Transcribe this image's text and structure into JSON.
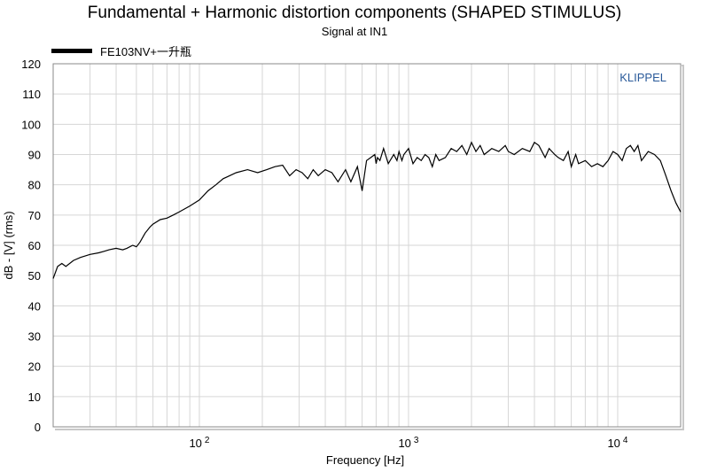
{
  "chart_data": {
    "type": "line",
    "title": "Fundamental + Harmonic distortion components (SHAPED STIMULUS)",
    "subtitle": "Signal at IN1",
    "xlabel": "Frequency [Hz]",
    "ylabel": "dB - [V]  (rms)",
    "x_scale": "log",
    "xlim": [
      20,
      20000
    ],
    "ylim": [
      0,
      120
    ],
    "y_ticks": [
      "0",
      "10",
      "20",
      "30",
      "40",
      "50",
      "60",
      "70",
      "80",
      "90",
      "100",
      "110",
      "120"
    ],
    "x_tick_labels": [
      {
        "value": 100,
        "base": "10",
        "exp": "2"
      },
      {
        "value": 1000,
        "base": "10",
        "exp": "3"
      },
      {
        "value": 10000,
        "base": "10",
        "exp": "4"
      }
    ],
    "grid": true,
    "legend_position": "top-left",
    "brand_label": "KLIPPEL",
    "series": [
      {
        "name": "FE103NV+一升瓶",
        "color": "#000000",
        "x": [
          20,
          21,
          22,
          23,
          25,
          27,
          30,
          33,
          35,
          37,
          40,
          43,
          45,
          48,
          50,
          52,
          55,
          58,
          60,
          65,
          70,
          75,
          80,
          90,
          100,
          110,
          120,
          130,
          150,
          170,
          190,
          210,
          230,
          250,
          270,
          290,
          310,
          330,
          350,
          370,
          400,
          430,
          460,
          500,
          530,
          570,
          600,
          630,
          660,
          690,
          700,
          710,
          730,
          760,
          800,
          850,
          880,
          900,
          930,
          950,
          1000,
          1050,
          1100,
          1150,
          1200,
          1250,
          1300,
          1350,
          1400,
          1500,
          1600,
          1700,
          1800,
          1900,
          2000,
          2100,
          2200,
          2300,
          2400,
          2500,
          2700,
          2900,
          3000,
          3200,
          3500,
          3800,
          4000,
          4200,
          4500,
          4700,
          5000,
          5200,
          5500,
          5800,
          6000,
          6300,
          6500,
          7000,
          7500,
          8000,
          8500,
          9000,
          9500,
          10000,
          10500,
          11000,
          11500,
          12000,
          12500,
          13000,
          14000,
          15000,
          16000,
          17000,
          18000,
          19000,
          20000
        ],
        "y": [
          49,
          53,
          54,
          53,
          55,
          56,
          57,
          57.5,
          58,
          58.5,
          59,
          58.5,
          59,
          60,
          59.5,
          61,
          64,
          66,
          67,
          68.5,
          69,
          70,
          71,
          73,
          75,
          78,
          80,
          82,
          84,
          85,
          84,
          85,
          86,
          86.5,
          83,
          85,
          84,
          82,
          85,
          83,
          85,
          84,
          81,
          85,
          81,
          86,
          78,
          88,
          89,
          90,
          87,
          89,
          88,
          92,
          87,
          90,
          88,
          91,
          88,
          90,
          92,
          87,
          89,
          88,
          90,
          89,
          86,
          90,
          88,
          89,
          92,
          91,
          93,
          90,
          94,
          91,
          93,
          90,
          91,
          92,
          91,
          93,
          91,
          90,
          92,
          91,
          94,
          93,
          89,
          92,
          90,
          89,
          88,
          91,
          86,
          90,
          87,
          88,
          86,
          87,
          86,
          88,
          91,
          90,
          88,
          92,
          93,
          91,
          93,
          88,
          91,
          90,
          88,
          83,
          78,
          74,
          71
        ]
      }
    ]
  }
}
